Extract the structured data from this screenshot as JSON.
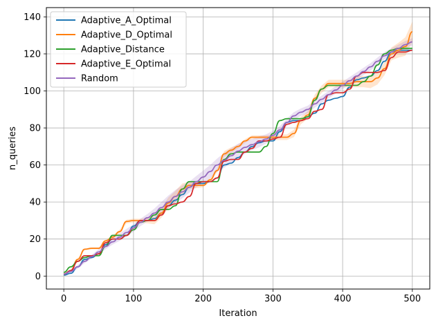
{
  "chart_data": {
    "type": "line",
    "title": "",
    "xlabel": "Iteration",
    "ylabel": "n_queries",
    "xlim": [
      -25,
      525
    ],
    "ylim": [
      -7,
      145
    ],
    "xticks": [
      0,
      100,
      200,
      300,
      400,
      500
    ],
    "yticks": [
      0,
      20,
      40,
      60,
      80,
      100,
      120,
      140
    ],
    "grid": true,
    "legend_position": "upper-left",
    "series": [
      {
        "name": "Adaptive_A_Optimal",
        "color": "#1f77b4",
        "x": [
          0,
          10,
          20,
          30,
          40,
          50,
          60,
          70,
          80,
          90,
          100,
          110,
          120,
          130,
          140,
          150,
          160,
          170,
          180,
          190,
          200,
          210,
          220,
          230,
          240,
          250,
          260,
          270,
          280,
          290,
          300,
          310,
          320,
          330,
          340,
          350,
          360,
          370,
          380,
          390,
          400,
          410,
          420,
          430,
          440,
          450,
          460,
          470,
          480,
          490,
          500
        ],
        "y": [
          0.5,
          1.5,
          5,
          9,
          10,
          12,
          17,
          20,
          20,
          22,
          27,
          30,
          30,
          31,
          34,
          38,
          41,
          44,
          48,
          50,
          50,
          51,
          53,
          60,
          61,
          64,
          67,
          70,
          72,
          73,
          73,
          78,
          83,
          84,
          84,
          86,
          88,
          93,
          95,
          96,
          97,
          102,
          106,
          107,
          108,
          111,
          116,
          121,
          122,
          122,
          122
        ],
        "band": []
      },
      {
        "name": "Adaptive_D_Optimal",
        "color": "#ff7f0e",
        "x": [
          0,
          10,
          20,
          30,
          40,
          50,
          60,
          70,
          80,
          90,
          100,
          110,
          120,
          130,
          140,
          150,
          160,
          170,
          180,
          190,
          200,
          210,
          220,
          230,
          240,
          250,
          260,
          270,
          280,
          290,
          300,
          310,
          320,
          330,
          340,
          350,
          360,
          370,
          380,
          390,
          400,
          410,
          420,
          430,
          440,
          450,
          460,
          470,
          480,
          490,
          500
        ],
        "y": [
          1,
          3,
          9,
          14.5,
          15,
          15,
          19,
          21,
          24,
          29.5,
          30,
          30,
          30,
          30,
          34,
          39.5,
          43,
          47,
          49,
          49,
          49,
          52,
          57,
          66,
          68,
          70,
          73,
          75,
          75,
          75,
          75,
          75,
          75,
          77,
          84,
          87,
          96,
          101,
          104,
          104,
          104,
          104,
          105,
          105,
          105,
          107,
          112,
          120,
          122,
          124,
          132
        ],
        "band": [
          0.5,
          0.5,
          0.5,
          0.5,
          0.5,
          0.5,
          0.5,
          1,
          1,
          1,
          1,
          1,
          1.5,
          2,
          2.5,
          3,
          3,
          3,
          2,
          1.5,
          1,
          1,
          1,
          1.5,
          1.5,
          1,
          1,
          1,
          1,
          1,
          1.5,
          1.5,
          1.5,
          2,
          2,
          2,
          2,
          2,
          2,
          2,
          2,
          2,
          3,
          3,
          3.5,
          3.5,
          3.5,
          3.5,
          4,
          5,
          5.5
        ]
      },
      {
        "name": "Adaptive_Distance",
        "color": "#2ca02c",
        "x": [
          0,
          10,
          20,
          30,
          40,
          50,
          60,
          70,
          80,
          90,
          100,
          110,
          120,
          130,
          140,
          150,
          160,
          170,
          180,
          190,
          200,
          210,
          220,
          230,
          240,
          250,
          260,
          270,
          280,
          290,
          300,
          310,
          320,
          330,
          340,
          350,
          360,
          370,
          380,
          390,
          400,
          410,
          420,
          430,
          440,
          450,
          460,
          470,
          480,
          490,
          500
        ],
        "y": [
          2,
          5,
          8,
          10,
          11,
          11,
          16,
          22,
          22,
          22,
          25,
          29,
          30,
          33,
          36,
          36,
          38,
          47,
          51,
          51,
          51,
          51,
          51,
          63,
          66,
          67,
          67,
          67,
          67,
          70,
          77,
          84,
          85,
          85,
          85,
          86,
          95,
          101,
          103,
          103,
          103,
          103,
          103,
          105,
          108,
          114,
          120,
          122,
          123,
          123,
          123
        ],
        "band": []
      },
      {
        "name": "Adaptive_E_Optimal",
        "color": "#d62728",
        "x": [
          0,
          10,
          20,
          30,
          40,
          50,
          60,
          70,
          80,
          90,
          100,
          110,
          120,
          130,
          140,
          150,
          160,
          170,
          180,
          190,
          200,
          210,
          220,
          230,
          240,
          250,
          260,
          270,
          280,
          290,
          300,
          310,
          320,
          330,
          340,
          350,
          360,
          370,
          380,
          390,
          400,
          410,
          420,
          430,
          440,
          450,
          460,
          470,
          480,
          490,
          500
        ],
        "y": [
          1,
          3,
          8,
          11,
          11,
          12,
          18,
          20,
          20,
          22,
          26,
          30,
          30,
          30,
          33,
          38,
          39,
          40,
          43,
          50,
          51,
          51,
          53,
          62,
          63,
          63,
          67,
          69,
          73,
          73,
          74,
          75,
          82,
          83,
          84,
          85,
          89,
          90,
          98,
          99,
          99,
          101,
          108,
          110,
          110,
          110,
          111,
          118,
          121,
          121,
          122
        ],
        "band": []
      },
      {
        "name": "Random",
        "color": "#9467bd",
        "x": [
          0,
          10,
          20,
          30,
          40,
          50,
          60,
          70,
          80,
          90,
          100,
          110,
          120,
          130,
          140,
          150,
          160,
          170,
          180,
          190,
          200,
          210,
          220,
          230,
          240,
          250,
          260,
          270,
          280,
          290,
          300,
          310,
          320,
          330,
          340,
          350,
          360,
          370,
          380,
          390,
          400,
          410,
          420,
          430,
          440,
          450,
          460,
          470,
          480,
          490,
          500
        ],
        "y": [
          1,
          2.5,
          5,
          8,
          10.5,
          13,
          16,
          18.5,
          21,
          23.5,
          26,
          29,
          31.5,
          34,
          37,
          40,
          43,
          45.5,
          48,
          51,
          53.5,
          56.5,
          60,
          62.5,
          65,
          67.5,
          69.5,
          71,
          72.5,
          74,
          76,
          79,
          83,
          86.5,
          88.5,
          90,
          93,
          95.5,
          98,
          100.5,
          103,
          105.5,
          108,
          110.5,
          113,
          116,
          119,
          121,
          123,
          125,
          126.5
        ],
        "band": [
          0.5,
          1,
          1,
          1,
          1,
          1.5,
          1.5,
          1.5,
          2,
          2,
          2,
          2,
          2,
          2.5,
          3,
          3.5,
          3.5,
          3.5,
          3,
          3,
          3.5,
          3.5,
          3.5,
          4,
          4,
          4,
          3.5,
          3,
          3,
          2.5,
          2.5,
          2,
          2,
          2,
          2,
          2,
          2,
          2,
          2,
          2,
          2,
          2,
          2,
          2,
          2,
          2,
          2,
          2,
          2,
          2,
          2
        ]
      }
    ]
  }
}
